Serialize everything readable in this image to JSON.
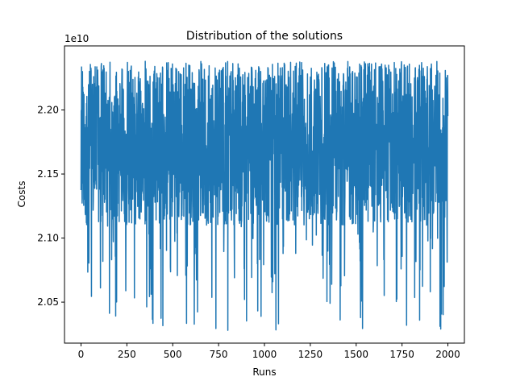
{
  "chart_data": {
    "type": "line",
    "title": "Distribution of the solutions",
    "xlabel": "Runs",
    "ylabel": "Costs",
    "y_offset_label": "1e10",
    "xlim": [
      -90,
      2090
    ],
    "ylim": [
      20180000000.0,
      22500000000.0
    ],
    "x_ticks": [
      0,
      250,
      500,
      750,
      1000,
      1250,
      1500,
      1750,
      2000
    ],
    "x_tick_labels": [
      "0",
      "250",
      "500",
      "750",
      "1000",
      "1250",
      "1500",
      "1750",
      "2000"
    ],
    "y_ticks": [
      20500000000.0,
      21000000000.0,
      21500000000.0,
      22000000000.0
    ],
    "y_tick_labels": [
      "2.05",
      "2.10",
      "2.15",
      "2.20"
    ],
    "grid": false,
    "series": [
      {
        "color": "#1f77b4",
        "n_points": 2000,
        "x_range": [
          0,
          2000
        ],
        "y_min": 20280000000.0,
        "y_max": 22380000000.0,
        "y_median": 21600000000.0,
        "y_typical_range": [
          21100000000.0,
          22300000000.0
        ]
      }
    ]
  }
}
